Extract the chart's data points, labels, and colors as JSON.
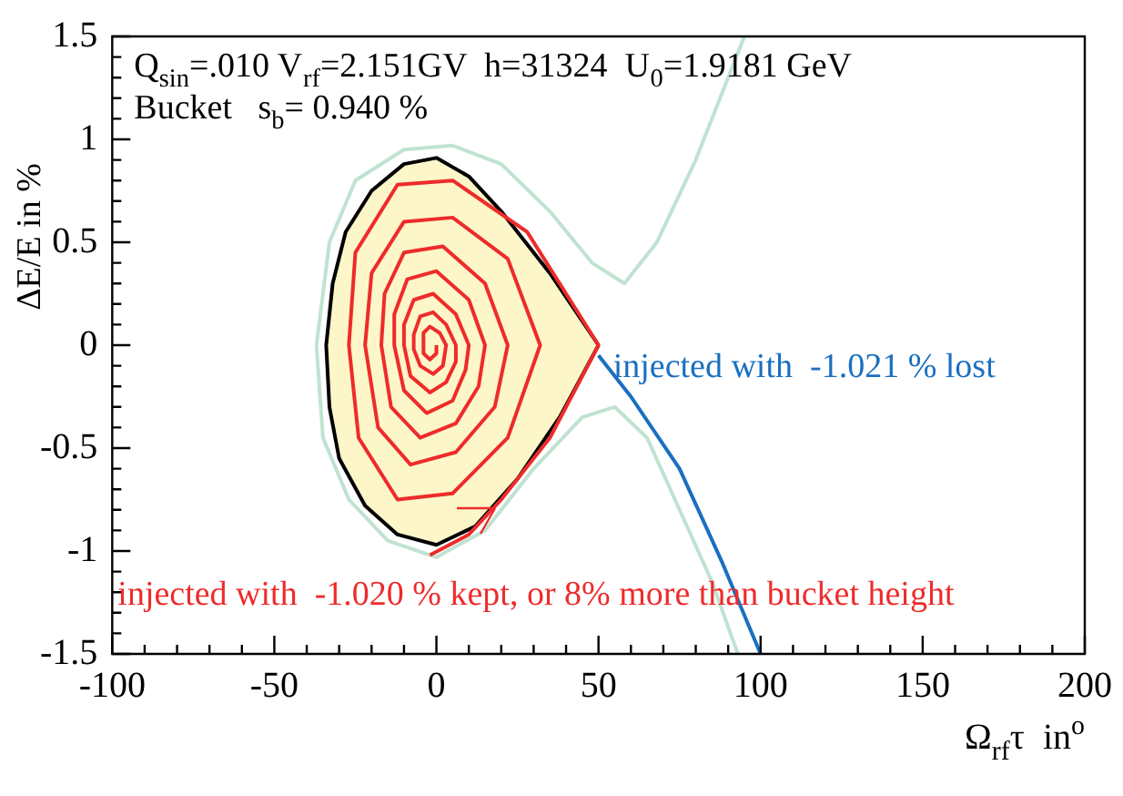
{
  "chart_data": {
    "type": "line",
    "xlabel": "Ω$_{rf}$τ  in$^{o}$",
    "ylabel": "ΔE/E in %",
    "xlim": [
      -100,
      200
    ],
    "xticks": [
      -100,
      -50,
      0,
      50,
      100,
      150,
      200
    ],
    "ylim": [
      -1.5,
      1.5
    ],
    "yticks": [
      -1.5,
      -1,
      -0.5,
      0,
      0.5,
      1,
      1.5
    ],
    "grid": false,
    "legend": false,
    "marker": "none",
    "line_style": "solid",
    "annotations": [
      "Q$_{sin}$=.010 V$_{rf}$=2.151GV  h=31324  U$_{0}$=1.9181 GeV",
      "Bucket   s$_{b}$= 0.940 %",
      {
        "text": "injected with  -1.021 % lost",
        "x": 50,
        "y": -0.05
      },
      "injected with  -1.020 % kept, or 8% more than bucket height"
    ],
    "series": [
      {
        "type": "area",
        "color": "#fdf6c8",
        "x": [
          50,
          35,
          20,
          10,
          0,
          -10,
          -20,
          -28,
          -32,
          -34,
          -33,
          -30,
          -22,
          -12,
          0,
          12,
          25,
          38,
          50
        ],
        "values": [
          0,
          0.35,
          0.65,
          0.82,
          0.91,
          0.88,
          0.75,
          0.55,
          0.3,
          0,
          -0.3,
          -0.55,
          -0.78,
          -0.92,
          -0.97,
          -0.88,
          -0.65,
          -0.35,
          0
        ]
      },
      {
        "type": "line",
        "color": "#bfe3d0",
        "x": [
          95,
          80,
          68,
          58,
          48,
          35,
          20,
          5,
          -10,
          -25,
          -33,
          -37,
          -35,
          -27,
          -15,
          0,
          15,
          30,
          45,
          55,
          65,
          75,
          85,
          93
        ],
        "values": [
          1.5,
          0.9,
          0.5,
          0.3,
          0.4,
          0.65,
          0.88,
          0.97,
          0.95,
          0.8,
          0.5,
          0,
          -0.45,
          -0.75,
          -0.95,
          -1.03,
          -0.9,
          -0.6,
          -0.35,
          -0.3,
          -0.45,
          -0.8,
          -1.15,
          -1.5
        ]
      },
      {
        "type": "line",
        "color": "#ee2b2b",
        "x": [
          -2,
          10,
          20,
          35,
          50,
          28,
          5,
          -12,
          -25,
          -27,
          -24,
          -12,
          5,
          22,
          32,
          22,
          5,
          -10,
          -20,
          -22,
          -18,
          -8,
          6,
          18,
          22,
          15,
          2,
          -10,
          -16,
          -17,
          -14,
          -5,
          6,
          13,
          15,
          10,
          0,
          -9,
          -13,
          -13,
          -10,
          -3,
          5,
          9,
          10,
          6,
          -1,
          -7,
          -10,
          -10,
          -8,
          -2,
          3,
          6,
          6,
          3,
          -1,
          -5,
          -7,
          -7,
          -5,
          -1,
          2,
          3,
          1,
          -2,
          -4,
          -4,
          -2,
          0,
          0
        ],
        "values": [
          -1.02,
          -0.92,
          -0.75,
          -0.45,
          0,
          0.55,
          0.8,
          0.78,
          0.45,
          0,
          -0.45,
          -0.75,
          -0.72,
          -0.45,
          0,
          0.42,
          0.62,
          0.6,
          0.35,
          0,
          -0.4,
          -0.58,
          -0.52,
          -0.3,
          0,
          0.3,
          0.48,
          0.45,
          0.25,
          0,
          -0.3,
          -0.45,
          -0.38,
          -0.2,
          0,
          0.22,
          0.36,
          0.32,
          0.15,
          0,
          -0.22,
          -0.33,
          -0.27,
          -0.12,
          0,
          0.15,
          0.25,
          0.22,
          0.1,
          0,
          -0.15,
          -0.23,
          -0.18,
          -0.08,
          0,
          0.1,
          0.16,
          0.14,
          0.05,
          -0.02,
          -0.1,
          -0.14,
          -0.1,
          0,
          0.06,
          0.09,
          0.06,
          -0.04,
          -0.07,
          -0.04,
          0
        ]
      },
      {
        "type": "line",
        "color": "#1a6fc0",
        "x": [
          50,
          60,
          75,
          88,
          100
        ],
        "values": [
          -0.05,
          -0.25,
          -0.6,
          -1.05,
          -1.5
        ]
      }
    ]
  }
}
